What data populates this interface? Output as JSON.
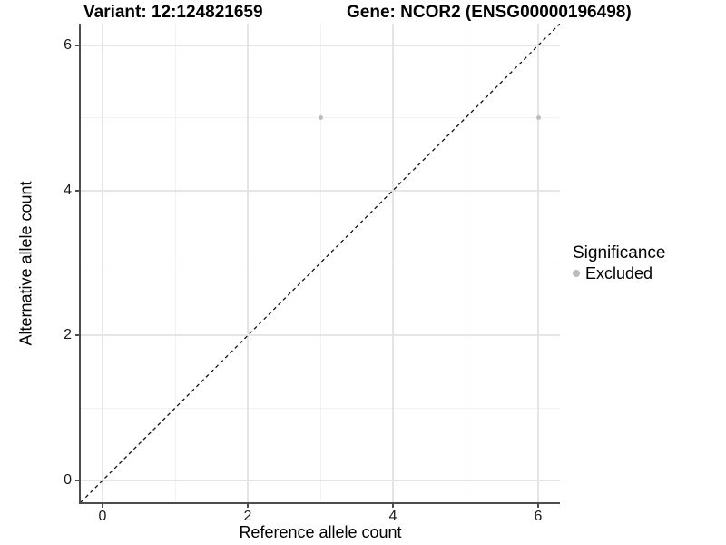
{
  "chart_data": {
    "type": "scatter",
    "titles": {
      "left": "Variant: 12:124821659",
      "right": "Gene: NCOR2 (ENSG00000196498)"
    },
    "xlabel": "Reference allele count",
    "ylabel": "Alternative allele count",
    "xlim": [
      -0.3,
      6.3
    ],
    "ylim": [
      -0.3,
      6.3
    ],
    "x_ticks": [
      0,
      2,
      4,
      6
    ],
    "y_ticks": [
      0,
      2,
      4,
      6
    ],
    "grid": {
      "on": true,
      "major": [
        0,
        2,
        4,
        6
      ],
      "minor": [
        1,
        3,
        5
      ]
    },
    "series": [
      {
        "name": "Excluded",
        "color": "#bdbdbd",
        "points": [
          {
            "x": 3,
            "y": 5
          },
          {
            "x": 6,
            "y": 5
          }
        ]
      }
    ],
    "identity_line": {
      "style": "dashed",
      "from": [
        -0.3,
        -0.3
      ],
      "to": [
        6.3,
        6.3
      ],
      "color": "#111111"
    },
    "legend": {
      "title": "Significance",
      "position": "right",
      "entries": [
        {
          "label": "Excluded",
          "color": "#bdbdbd"
        }
      ]
    },
    "colors": {
      "axis_line": "#4d4d4d",
      "grid_major": "#e5e5e5",
      "grid_minor": "#f2f2f2",
      "background": "#ffffff",
      "text": "#000000"
    }
  }
}
